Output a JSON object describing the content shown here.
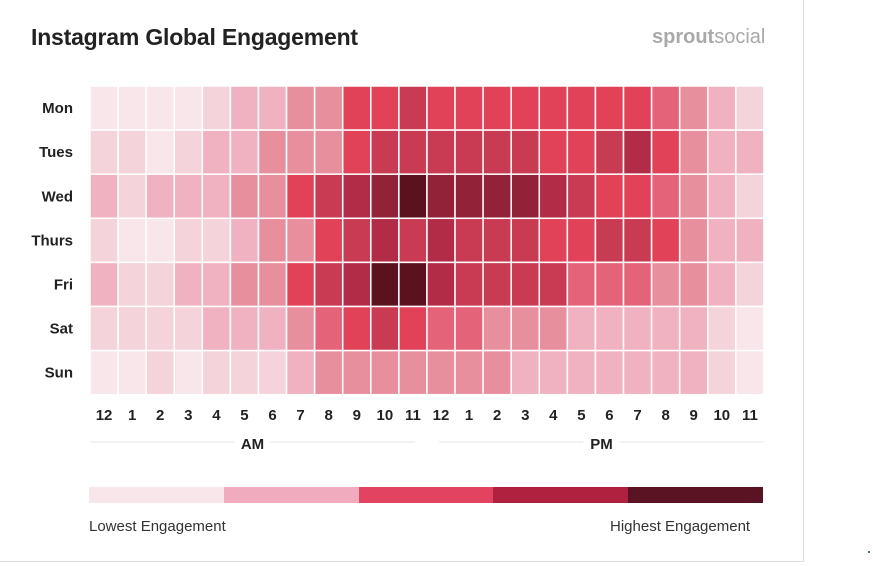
{
  "header": {
    "title": "Instagram Global Engagement",
    "brand_bold": "sprout",
    "brand_light": "social"
  },
  "chart_data": {
    "type": "heatmap",
    "title": "Instagram Global Engagement",
    "rows": [
      "Mon",
      "Tues",
      "Wed",
      "Thurs",
      "Fri",
      "Sat",
      "Sun"
    ],
    "columns": [
      "12",
      "1",
      "2",
      "3",
      "4",
      "5",
      "6",
      "7",
      "8",
      "9",
      "10",
      "11",
      "12",
      "1",
      "2",
      "3",
      "4",
      "5",
      "6",
      "7",
      "8",
      "9",
      "10",
      "11"
    ],
    "period_labels": [
      "AM",
      "PM"
    ],
    "value_scale": "1 (lowest) to 10 (highest)",
    "values": [
      [
        1,
        1,
        1,
        1,
        2,
        3,
        3,
        4,
        4,
        6,
        6,
        7,
        6,
        6,
        6,
        6,
        6,
        6,
        6,
        6,
        5,
        4,
        3,
        2
      ],
      [
        2,
        2,
        1,
        2,
        3,
        3,
        4,
        4,
        4,
        6,
        7,
        7,
        7,
        7,
        7,
        7,
        6,
        6,
        7,
        8,
        6,
        4,
        3,
        3
      ],
      [
        3,
        2,
        3,
        3,
        3,
        4,
        4,
        6,
        7,
        8,
        9,
        10,
        9,
        9,
        9,
        9,
        8,
        7,
        6,
        6,
        5,
        4,
        3,
        2
      ],
      [
        2,
        1,
        1,
        2,
        2,
        3,
        4,
        4,
        6,
        7,
        8,
        7,
        8,
        7,
        7,
        7,
        6,
        6,
        7,
        7,
        6,
        4,
        3,
        3
      ],
      [
        3,
        2,
        2,
        3,
        3,
        4,
        4,
        6,
        7,
        8,
        10,
        10,
        8,
        7,
        7,
        7,
        7,
        5,
        5,
        5,
        4,
        4,
        3,
        2
      ],
      [
        2,
        2,
        2,
        2,
        3,
        3,
        3,
        4,
        5,
        6,
        7,
        6,
        5,
        5,
        4,
        4,
        4,
        3,
        3,
        3,
        3,
        3,
        2,
        1
      ],
      [
        1,
        1,
        2,
        1,
        2,
        2,
        2,
        3,
        4,
        4,
        4,
        4,
        4,
        4,
        4,
        3,
        3,
        3,
        3,
        3,
        3,
        3,
        2,
        1
      ]
    ],
    "color_scale": [
      "#f8e6ea",
      "#f5d3da",
      "#f0b2c1",
      "#e88f9e",
      "#e56378",
      "#e24258",
      "#c93a53",
      "#b22c47",
      "#912238",
      "#5c111e"
    ],
    "legend": {
      "colors": [
        "#f8e6ea",
        "#f0abbf",
        "#e24360",
        "#b0203f",
        "#5a1322"
      ],
      "low_label": "Lowest Engagement",
      "high_label": "Highest Engagement"
    }
  }
}
